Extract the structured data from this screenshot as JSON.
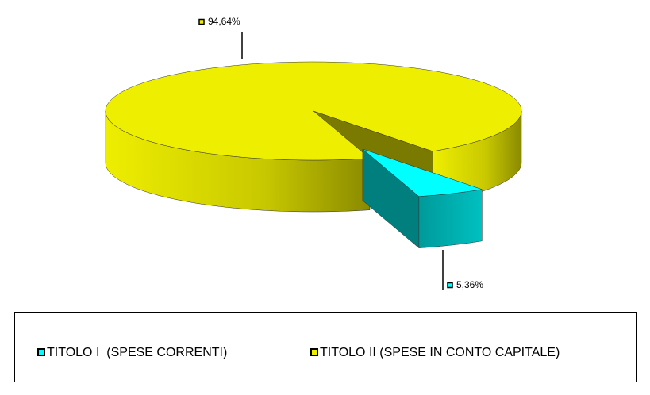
{
  "chart_data": {
    "type": "pie3d",
    "categories": [
      "TITOLO I  (SPESE CORRENTI)",
      "TITOLO II (SPESE IN CONTO CAPITALE)"
    ],
    "values": [
      5.36,
      94.64
    ],
    "value_labels": [
      "5,36%",
      "94,64%"
    ],
    "colors": [
      "#00ffff",
      "#eeee00"
    ],
    "legend": "bottom"
  }
}
